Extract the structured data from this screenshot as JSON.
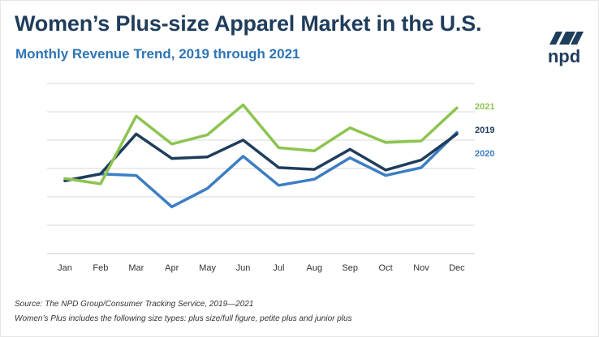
{
  "header": {
    "title": "Women’s Plus-size Apparel Market in the U.S.",
    "subtitle": "Monthly Revenue Trend, 2019 through 2021"
  },
  "logo": {
    "text": "npd",
    "icon": "npd-logo-mark",
    "color": "#1f3d5c"
  },
  "footer": {
    "source": "Source: The NPD Group/Consumer Tracking Service, 2019—2021",
    "footnote": "Women’s Plus includes the following size types: plus size/full figure, petite plus and junior plus"
  },
  "chart_data": {
    "type": "line",
    "title": "Women’s Plus-size Apparel Market in the U.S.",
    "subtitle": "Monthly Revenue Trend, 2019 through 2021",
    "categories": [
      "Jan",
      "Feb",
      "Mar",
      "Apr",
      "May",
      "Jun",
      "Jul",
      "Aug",
      "Sep",
      "Oct",
      "Nov",
      "Dec"
    ],
    "y_unit_note": "relative index (0 = plot bottom, 100 = plot top); axis has no tick labels",
    "ylim": [
      0,
      100
    ],
    "gridlines": 7,
    "grid": true,
    "legend": "end-of-line labels, right",
    "series": [
      {
        "name": "2021",
        "color": "#8dc450",
        "values": [
          44.1,
          41.0,
          80.8,
          64.4,
          69.8,
          87.4,
          62.2,
          60.4,
          73.9,
          65.3,
          66.2,
          85.6
        ]
      },
      {
        "name": "2019",
        "color": "#1f3d5c",
        "values": [
          42.8,
          46.8,
          70.3,
          55.9,
          56.8,
          66.7,
          50.5,
          49.5,
          61.3,
          49.1,
          55.0,
          70.3
        ]
      },
      {
        "name": "2020",
        "color": "#3c7ec4",
        "values": [
          42.8,
          46.8,
          45.9,
          27.5,
          38.3,
          57.2,
          40.1,
          43.7,
          56.3,
          45.9,
          50.5,
          71.2
        ]
      }
    ]
  }
}
